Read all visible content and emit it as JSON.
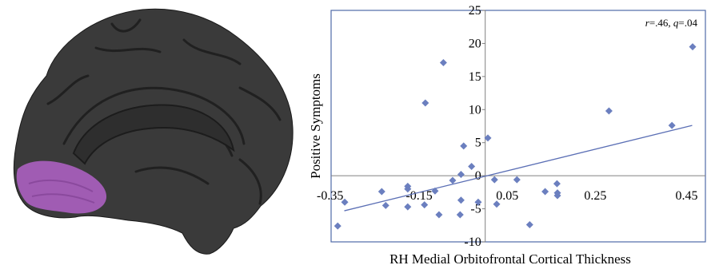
{
  "brain_image": {
    "colors": {
      "cortex": "#3a3a3a",
      "region_highlight": "#a05cb3"
    }
  },
  "chart_data": {
    "type": "scatter",
    "xlabel": "RH Medial Orbitofrontal Cortical Thickness",
    "ylabel": "Positive Symptoms",
    "xlim": [
      -0.35,
      0.5
    ],
    "ylim": [
      -10,
      25
    ],
    "x_ticks": [
      -0.35,
      -0.15,
      0.05,
      0.25,
      0.45
    ],
    "x_tick_labels": [
      "-0.35",
      "-0.15",
      "0.05",
      "0.25",
      "0.45"
    ],
    "y_ticks": [
      -10,
      -5,
      0,
      5,
      10,
      15,
      20,
      25
    ],
    "y_tick_labels": [
      "-10",
      "-5",
      "0",
      "5",
      "10",
      "15",
      "20",
      "25"
    ],
    "annotation": {
      "r_label": "r",
      "r_value": "=.46, ",
      "q_label": "q",
      "q_value": "=.04"
    },
    "points": [
      {
        "x": -0.335,
        "y": -7.6
      },
      {
        "x": -0.319,
        "y": -4.0
      },
      {
        "x": -0.235,
        "y": -2.4
      },
      {
        "x": -0.226,
        "y": -4.5
      },
      {
        "x": -0.176,
        "y": -4.7
      },
      {
        "x": -0.176,
        "y": -2.0
      },
      {
        "x": -0.176,
        "y": -1.6
      },
      {
        "x": -0.138,
        "y": -4.4
      },
      {
        "x": -0.136,
        "y": 11.0
      },
      {
        "x": -0.114,
        "y": -2.3
      },
      {
        "x": -0.105,
        "y": -5.9
      },
      {
        "x": -0.095,
        "y": 17.1
      },
      {
        "x": -0.074,
        "y": -0.7
      },
      {
        "x": -0.057,
        "y": -5.9
      },
      {
        "x": -0.055,
        "y": -3.7
      },
      {
        "x": -0.055,
        "y": 0.2
      },
      {
        "x": -0.049,
        "y": 4.5
      },
      {
        "x": -0.031,
        "y": 1.4
      },
      {
        "x": -0.016,
        "y": -4.0
      },
      {
        "x": 0.006,
        "y": 5.7
      },
      {
        "x": 0.021,
        "y": -0.6
      },
      {
        "x": 0.026,
        "y": -4.3
      },
      {
        "x": 0.072,
        "y": -0.6
      },
      {
        "x": 0.101,
        "y": -7.4
      },
      {
        "x": 0.136,
        "y": -2.4
      },
      {
        "x": 0.163,
        "y": -1.2
      },
      {
        "x": 0.164,
        "y": -2.6
      },
      {
        "x": 0.164,
        "y": -3.0
      },
      {
        "x": 0.281,
        "y": 9.8
      },
      {
        "x": 0.424,
        "y": 7.6
      },
      {
        "x": 0.471,
        "y": 19.5
      }
    ],
    "trendline": {
      "x": [
        -0.32,
        0.47
      ],
      "y": [
        -5.3,
        7.6
      ]
    },
    "grid": false,
    "colors": {
      "marker": "#6b7fbf",
      "trendline": "#5b6fb5",
      "frame": "#4f6aa8",
      "axis": "#808080"
    }
  }
}
